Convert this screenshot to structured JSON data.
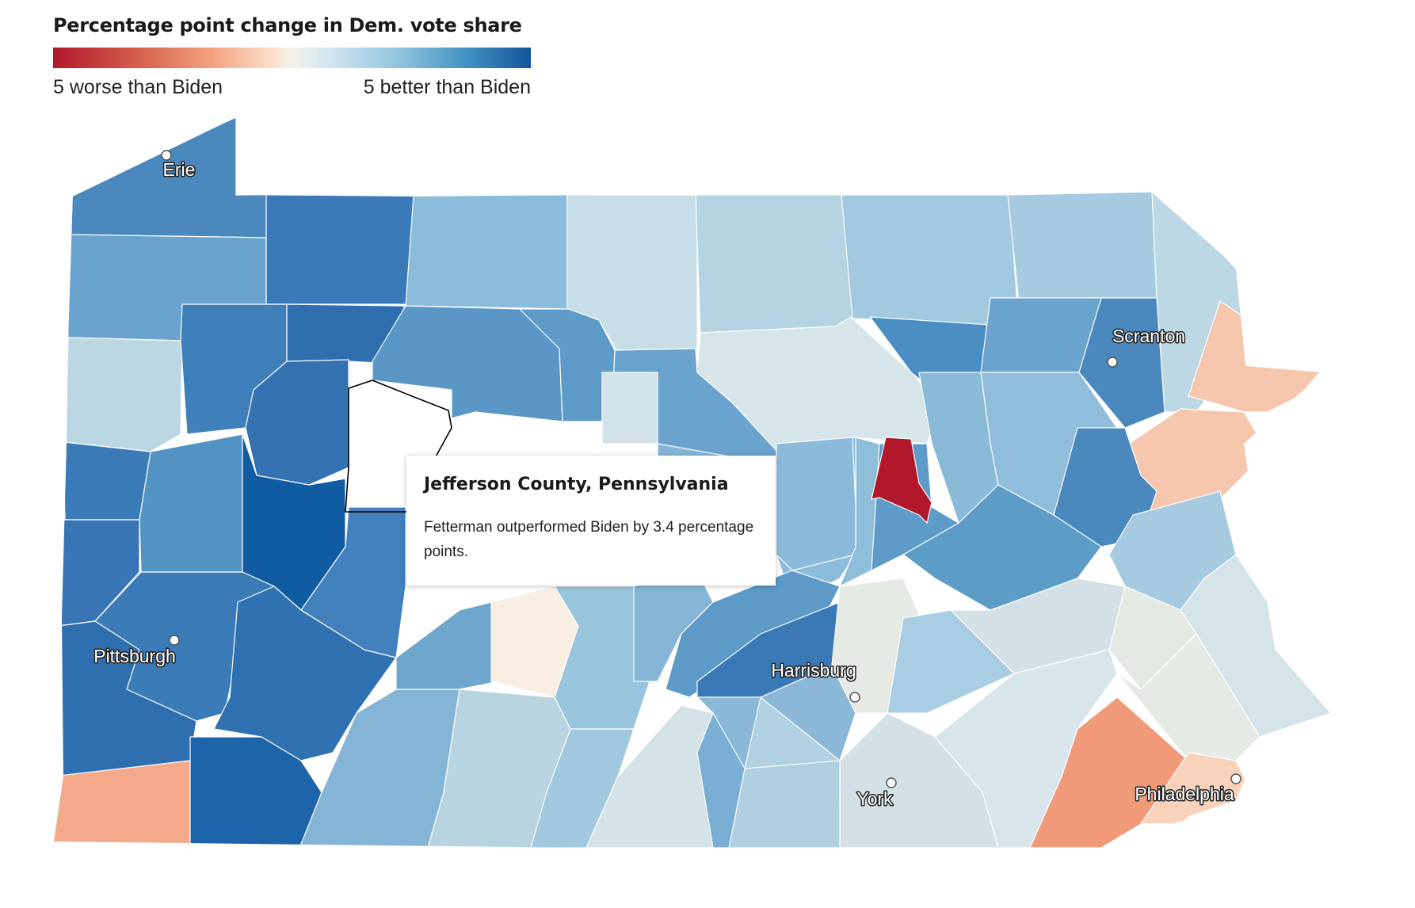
{
  "legend": {
    "title": "Percentage point change in Dem. vote share",
    "left_label": "5 worse than Biden",
    "right_label": "5 better than Biden"
  },
  "scale": {
    "min": -5,
    "max": 5,
    "colors": [
      "#b2182b",
      "#d6604d",
      "#f4a582",
      "#fbe0cc",
      "#f4f2ea",
      "#d1e5f0",
      "#92c5de",
      "#4393c3",
      "#14559a"
    ]
  },
  "cities": [
    {
      "name": "Erie"
    },
    {
      "name": "Scranton"
    },
    {
      "name": "Pittsburgh"
    },
    {
      "name": "Harrisburg"
    },
    {
      "name": "York"
    },
    {
      "name": "Philadelphia"
    }
  ],
  "selected_county": "Jefferson County, Pennsylvania",
  "tooltip": {
    "title": "Jefferson County, Pennsylvania",
    "body": "Fetterman outperformed Biden by 3.4 percentage points.",
    "value": 3.4
  },
  "colors": {
    "highlight_outline": "#000000",
    "strongest_red": "#b2182b",
    "strongest_blue": "#14559a"
  }
}
